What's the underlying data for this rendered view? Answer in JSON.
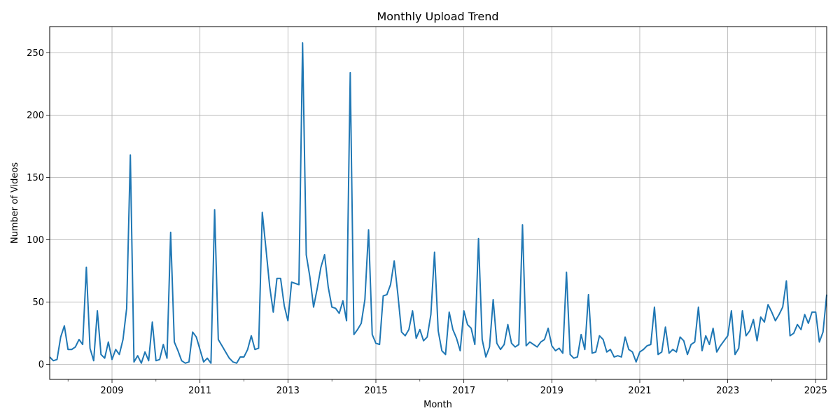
{
  "chart_data": {
    "type": "line",
    "title": "Monthly Upload Trend",
    "xlabel": "Month",
    "ylabel": "Number of Videos",
    "start_month": "2007-08",
    "xlim": [
      "2007-08",
      "2025-04"
    ],
    "ylim": [
      -12,
      271
    ],
    "grid": true,
    "color": "#1f77b4",
    "x_ticks": [
      "2009",
      "2011",
      "2013",
      "2015",
      "2017",
      "2019",
      "2021",
      "2023",
      "2025"
    ],
    "y_ticks": [
      "0",
      "50",
      "100",
      "150",
      "200",
      "250"
    ],
    "series": [
      {
        "name": "",
        "values": [
          6,
          3,
          4,
          22,
          31,
          12,
          12,
          14,
          20,
          16,
          78,
          13,
          3,
          43,
          8,
          5,
          18,
          4,
          12,
          8,
          20,
          45,
          168,
          2,
          7,
          1,
          10,
          3,
          34,
          3,
          4,
          16,
          5,
          106,
          18,
          11,
          3,
          1,
          2,
          26,
          22,
          12,
          2,
          5,
          1,
          124,
          20,
          15,
          10,
          5,
          2,
          1,
          6,
          6,
          12,
          23,
          12,
          13,
          122,
          93,
          63,
          42,
          69,
          69,
          47,
          35,
          66,
          65,
          64,
          258,
          88,
          70,
          46,
          61,
          78,
          88,
          62,
          46,
          45,
          41,
          51,
          35,
          234,
          24,
          28,
          33,
          52,
          108,
          24,
          17,
          16,
          55,
          56,
          64,
          83,
          56,
          26,
          23,
          28,
          43,
          21,
          28,
          19,
          22,
          40,
          90,
          27,
          11,
          8,
          42,
          28,
          21,
          11,
          43,
          32,
          29,
          16,
          101,
          20,
          6,
          14,
          52,
          17,
          12,
          16,
          32,
          17,
          14,
          16,
          112,
          15,
          18,
          16,
          14,
          18,
          20,
          29,
          15,
          11,
          13,
          9,
          74,
          8,
          5,
          6,
          24,
          12,
          56,
          9,
          10,
          23,
          20,
          10,
          12,
          6,
          7,
          6,
          22,
          12,
          10,
          2,
          10,
          12,
          15,
          16,
          46,
          8,
          10,
          30,
          9,
          12,
          10,
          22,
          19,
          8,
          16,
          18,
          46,
          11,
          23,
          16,
          29,
          10,
          15,
          19,
          23,
          43,
          8,
          13,
          43,
          23,
          27,
          36,
          19,
          38,
          34,
          48,
          42,
          35,
          40,
          46,
          67,
          23,
          25,
          32,
          28,
          40,
          33,
          42,
          42,
          18,
          26,
          56
        ]
      }
    ]
  }
}
